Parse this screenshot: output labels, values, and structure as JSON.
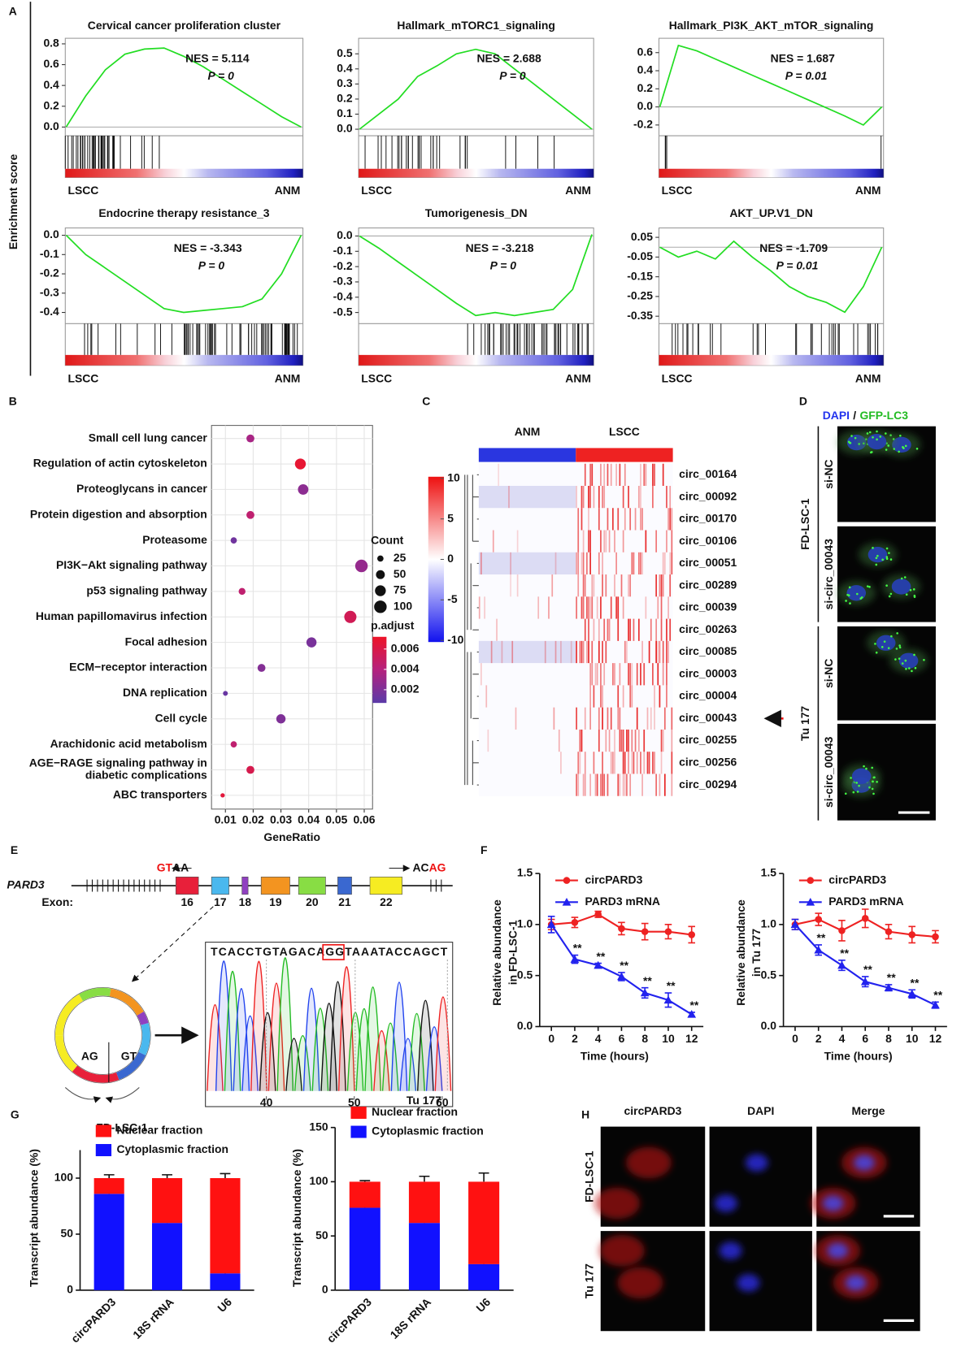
{
  "panel_labels": [
    "A",
    "B",
    "C",
    "D",
    "E",
    "F",
    "G",
    "H"
  ],
  "panel_a": {
    "y_label": "Enrichment score",
    "plots": [
      {
        "title": "Cervical cancer proliferation cluster",
        "nes": "NES = 5.114",
        "p": "P = 0",
        "left": "LSCC",
        "right": "ANM",
        "ylim": [
          -0.05,
          0.82
        ],
        "yticks": [
          {
            "value": 0,
            "label": "0.0"
          },
          0.2,
          0.4,
          0.6,
          0.8
        ],
        "values": [
          0,
          0.3,
          0.55,
          0.7,
          0.75,
          0.76,
          0.68,
          0.58,
          0.46,
          0.34,
          0.22,
          0.1,
          0.0
        ]
      },
      {
        "title": "Hallmark_mTORC1_signaling",
        "nes": "NES = 2.688",
        "p": "P = 0",
        "left": "LSCC",
        "right": "ANM",
        "ylim": [
          -0.02,
          0.58
        ],
        "yticks": [
          {
            "value": 0,
            "label": "0.0"
          },
          0.1,
          0.2,
          0.3,
          0.4,
          0.5
        ],
        "values": [
          0,
          0.1,
          0.2,
          0.35,
          0.42,
          0.5,
          0.53,
          0.5,
          0.4,
          0.3,
          0.2,
          0.1,
          0.0
        ]
      },
      {
        "title": "Hallmark_PI3K_AKT_mTOR_signaling",
        "nes": "NES = 1.687",
        "p": "P = 0.01",
        "left": "LSCC",
        "right": "ANM",
        "ylim": [
          -0.28,
          0.72
        ],
        "yticks": [
          -0.2,
          {
            "value": 0,
            "label": "0.0"
          },
          0.2,
          0.4,
          0.6
        ],
        "values": [
          0,
          0.68,
          0.62,
          0.53,
          0.44,
          0.35,
          0.26,
          0.17,
          0.08,
          -0.01,
          -0.1,
          -0.2,
          0.0
        ]
      },
      {
        "title": "Endocrine therapy resistance_3",
        "nes": "NES = -3.343",
        "p": "P = 0",
        "left": "LSCC",
        "right": "ANM",
        "ylim": [
          -0.44,
          0.02
        ],
        "yticks": [
          {
            "value": 0,
            "label": "0.0"
          },
          -0.1,
          -0.2,
          -0.3,
          -0.4
        ],
        "values": [
          0,
          -0.1,
          -0.17,
          -0.24,
          -0.31,
          -0.38,
          -0.4,
          -0.39,
          -0.38,
          -0.37,
          -0.33,
          -0.2,
          0.0
        ]
      },
      {
        "title": "Tumorigenesis_DN",
        "nes": "NES = -3.218",
        "p": "P = 0",
        "left": "LSCC",
        "right": "ANM",
        "ylim": [
          -0.55,
          0.03
        ],
        "yticks": [
          {
            "value": 0,
            "label": "0.0"
          },
          -0.1,
          -0.2,
          -0.3,
          -0.4,
          -0.5
        ],
        "values": [
          0,
          -0.08,
          -0.17,
          -0.26,
          -0.35,
          -0.44,
          -0.52,
          -0.5,
          -0.52,
          -0.5,
          -0.48,
          -0.35,
          0.01
        ]
      },
      {
        "title": "AKT_UP.V1_DN",
        "nes": "NES = -1.709",
        "p": "P = 0.01",
        "left": "LSCC",
        "right": "ANM",
        "ylim": [
          -0.37,
          0.08
        ],
        "yticks": [
          0.05,
          -0.05,
          -0.15,
          -0.25,
          -0.35
        ],
        "values": [
          0,
          -0.05,
          -0.02,
          -0.06,
          0.03,
          -0.05,
          -0.12,
          -0.2,
          -0.25,
          -0.28,
          -0.33,
          -0.2,
          0.0
        ]
      }
    ]
  },
  "panel_b": {
    "type": "scatter",
    "categories": [
      "Small cell lung cancer",
      "Regulation of actin cytoskeleton",
      "Proteoglycans in cancer",
      "Protein digestion and absorption",
      "Proteasome",
      "PI3K−Akt signaling pathway",
      "p53 signaling pathway",
      "Human papillomavirus infection",
      "Focal adhesion",
      "ECM−receptor interaction",
      "DNA replication",
      "Cell cycle",
      "Arachidonic acid metabolism",
      [
        "AGE−RAGE signaling pathway in",
        "diabetic complications"
      ],
      "ABC transporters"
    ],
    "x": [
      0.019,
      0.037,
      0.038,
      0.019,
      0.013,
      0.059,
      0.016,
      0.055,
      0.041,
      0.023,
      0.01,
      0.03,
      0.013,
      0.019,
      0.009
    ],
    "sizes": [
      40,
      75,
      70,
      40,
      25,
      100,
      30,
      95,
      65,
      40,
      15,
      55,
      25,
      40,
      12
    ],
    "p_adjust": [
      0.0035,
      0.0068,
      0.0025,
      0.0045,
      0.0015,
      0.0028,
      0.0045,
      0.0055,
      0.0018,
      0.0022,
      0.0012,
      0.002,
      0.0045,
      0.0058,
      0.0065
    ],
    "xlim": [
      0.005,
      0.063
    ],
    "xticks": [
      0.01,
      0.02,
      0.03,
      0.04,
      0.05,
      0.06
    ],
    "x_label": "GeneRatio",
    "size_legend": {
      "title": "Count",
      "values": [
        25,
        50,
        75,
        100
      ]
    },
    "color_legend": {
      "title": "p.adjust",
      "lim": [
        0.0007,
        0.0072
      ],
      "ticks": [
        0.006,
        0.004,
        0.002
      ],
      "colors": [
        "#5a3aa8",
        "#b5227e",
        "#ee1428"
      ]
    }
  },
  "panel_c": {
    "groups": [
      "ANM",
      "LSCC"
    ],
    "group_colors": [
      "#2a36e0",
      "#ee2222"
    ],
    "colorbar_ticks": [
      10,
      5,
      0,
      -5,
      -10
    ],
    "rows": [
      "circ_00164",
      "circ_00092",
      "circ_00170",
      "circ_00106",
      "circ_00051",
      "circ_00289",
      "circ_00039",
      "circ_00263",
      "circ_00085",
      "circ_00003",
      "circ_00004",
      "circ_00043",
      "circ_00255",
      "circ_00256",
      "circ_00294"
    ],
    "highlight": 11
  },
  "panel_d": {
    "stains": [
      "DAPI",
      "/",
      "GFP-LC3"
    ],
    "cells": [
      {
        "name": "FD-LSC-1",
        "rows": [
          "si-NC",
          "si-circ_00043"
        ]
      },
      {
        "name": "Tu 177",
        "rows": [
          "si-NC",
          "si-circ_00043"
        ]
      }
    ]
  },
  "panel_e": {
    "gene": "PARD3",
    "exon_label": "Exon:",
    "exons": [
      "16",
      "17",
      "18",
      "19",
      "20",
      "21",
      "22"
    ],
    "splice_left": [
      "GT",
      "AA"
    ],
    "splice_right": [
      "AC",
      "AG"
    ],
    "sequence": "TCACCTGTAGACAGGTAAATACCAGCT",
    "trace_ticks": [
      40,
      50,
      60
    ],
    "circle_labels": [
      "AG",
      "GT"
    ]
  },
  "panel_f": {
    "charts": [
      {
        "y_label": [
          "Relative abundance",
          "in FD-LSC-1"
        ],
        "x_label": "Time (hours)",
        "x": [
          0,
          2,
          4,
          6,
          8,
          10,
          12
        ],
        "xlim": [
          -1,
          13
        ],
        "xticks": [
          0,
          2,
          4,
          6,
          8,
          10,
          12
        ],
        "ylim": [
          0,
          1.5
        ],
        "yticks": [
          {
            "value": 0,
            "label": "0.0"
          },
          0.5,
          {
            "value": 1,
            "label": "1.0"
          },
          {
            "value": 1.5,
            "label": "1.5"
          }
        ],
        "series": [
          {
            "name": "circPARD3",
            "color": "#ee2222",
            "marker": "circle",
            "values": [
              1.0,
              1.02,
              1.1,
              0.96,
              0.93,
              0.93,
              0.9
            ],
            "errors": [
              0.05,
              0.05,
              0.03,
              0.06,
              0.08,
              0.07,
              0.08
            ]
          },
          {
            "name": "PARD3 mRNA",
            "color": "#2222ee",
            "marker": "triangle",
            "values": [
              1.0,
              0.66,
              0.6,
              0.49,
              0.33,
              0.26,
              0.12
            ],
            "errors": [
              0.08,
              0.04,
              0.02,
              0.04,
              0.05,
              0.07,
              0.02
            ],
            "labels": [
              null,
              "**",
              "**",
              "**",
              "**",
              "**",
              "**"
            ]
          }
        ]
      },
      {
        "y_label": [
          "Relative abundance",
          "in Tu 177"
        ],
        "x_label": "Time (hours)",
        "x": [
          0,
          2,
          4,
          6,
          8,
          10,
          12
        ],
        "xlim": [
          -1,
          13
        ],
        "xticks": [
          0,
          2,
          4,
          6,
          8,
          10,
          12
        ],
        "ylim": [
          0,
          1.5
        ],
        "yticks": [
          {
            "value": 0,
            "label": "0.0"
          },
          0.5,
          {
            "value": 1,
            "label": "1.0"
          },
          {
            "value": 1.5,
            "label": "1.5"
          }
        ],
        "series": [
          {
            "name": "circPARD3",
            "color": "#ee2222",
            "marker": "circle",
            "values": [
              1.0,
              1.05,
              0.94,
              1.06,
              0.93,
              0.9,
              0.88
            ],
            "errors": [
              0.05,
              0.06,
              0.1,
              0.09,
              0.07,
              0.08,
              0.06
            ]
          },
          {
            "name": "PARD3 mRNA",
            "color": "#2222ee",
            "marker": "triangle",
            "values": [
              1.0,
              0.75,
              0.6,
              0.44,
              0.38,
              0.32,
              0.21
            ],
            "errors": [
              0.05,
              0.05,
              0.05,
              0.05,
              0.03,
              0.04,
              0.03
            ],
            "labels": [
              null,
              "**",
              "**",
              "**",
              "**",
              "**",
              "**"
            ]
          }
        ]
      }
    ]
  },
  "panel_g": {
    "charts": [
      {
        "title": "FD-LSC-1",
        "y_label": "Transcript abundance (%)",
        "categories": [
          "circPARD3",
          "18S rRNA",
          "U6"
        ],
        "ylim": [
          0,
          125
        ],
        "yticks": [
          0,
          50,
          100
        ],
        "series": [
          {
            "name": "Nuclear fraction",
            "color": "#ff1111",
            "values": [
              14,
              40,
              85
            ],
            "errors": [
              3,
              3,
              4
            ]
          },
          {
            "name": "Cytoplasmic fraction",
            "color": "#1111ff",
            "values": [
              86,
              60,
              15
            ],
            "errors": [
              8,
              3,
              2
            ]
          }
        ]
      },
      {
        "title": "Tu 177",
        "y_label": "Transcript abundance (%)",
        "categories": [
          "circPARD3",
          "18S rRNA",
          "U6"
        ],
        "ylim": [
          0,
          150
        ],
        "yticks": [
          0,
          50,
          100,
          150
        ],
        "series": [
          {
            "name": "Nuclear fraction",
            "color": "#ff1111",
            "values": [
              24,
              38,
              76
            ],
            "errors": [
              1,
              5,
              8
            ]
          },
          {
            "name": "Cytoplasmic fraction",
            "color": "#1111ff",
            "values": [
              76,
              62,
              24
            ],
            "errors": [
              14,
              1,
              5
            ]
          }
        ]
      }
    ]
  },
  "panel_h": {
    "columns": [
      "circPARD3",
      "DAPI",
      "Merge"
    ],
    "column_colors": [
      "#dd1111",
      "#2222ee",
      "#111111"
    ],
    "rows": [
      "FD-LSC-1",
      "Tu 177"
    ]
  }
}
